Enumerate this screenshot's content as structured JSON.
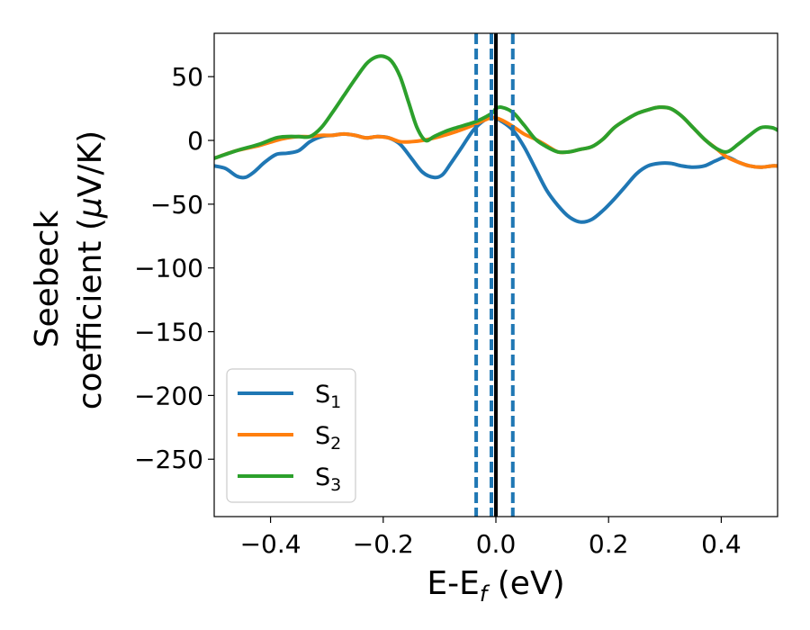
{
  "chart_data": {
    "type": "line",
    "xlabel": {
      "main": "E-E",
      "sub": "f",
      "tail": " (eV)"
    },
    "ylabel": {
      "line1": "Seebeck",
      "line2_pre": "coefficient  (",
      "line2_mu": "μ",
      "line2_post": "V/K)"
    },
    "xlim": [
      -0.5,
      0.5
    ],
    "ylim": [
      -295,
      84
    ],
    "x_ticks": [
      -0.4,
      -0.2,
      0.0,
      0.2,
      0.4
    ],
    "x_tick_labels": [
      "−0.4",
      "−0.2",
      "0.0",
      "0.2",
      "0.4"
    ],
    "y_ticks": [
      50,
      0,
      -50,
      -100,
      -150,
      -200,
      -250
    ],
    "y_tick_labels": [
      "50",
      "0",
      "−50",
      "−100",
      "−150",
      "−200",
      "−250"
    ],
    "grid": false,
    "legend_position": "lower-left",
    "vlines": [
      {
        "x": -0.035,
        "style": "dashed",
        "color": "#1f77b4"
      },
      {
        "x": -0.008,
        "style": "dashed",
        "color": "#1f77b4"
      },
      {
        "x": 0.0,
        "style": "solid",
        "color": "#000000"
      },
      {
        "x": 0.03,
        "style": "dashed",
        "color": "#1f77b4"
      }
    ],
    "series": [
      {
        "name": "S",
        "sub": "1",
        "color": "#1f77b4",
        "points": [
          [
            -0.5,
            -20
          ],
          [
            -0.48,
            -22
          ],
          [
            -0.46,
            -28
          ],
          [
            -0.445,
            -29
          ],
          [
            -0.43,
            -25
          ],
          [
            -0.41,
            -17
          ],
          [
            -0.39,
            -11
          ],
          [
            -0.37,
            -10
          ],
          [
            -0.35,
            -8
          ],
          [
            -0.33,
            -1
          ],
          [
            -0.31,
            3
          ],
          [
            -0.29,
            4
          ],
          [
            -0.27,
            5
          ],
          [
            -0.25,
            4
          ],
          [
            -0.23,
            2
          ],
          [
            -0.21,
            3
          ],
          [
            -0.19,
            2
          ],
          [
            -0.17,
            -3
          ],
          [
            -0.15,
            -14
          ],
          [
            -0.13,
            -25
          ],
          [
            -0.11,
            -29
          ],
          [
            -0.095,
            -27
          ],
          [
            -0.08,
            -18
          ],
          [
            -0.06,
            -5
          ],
          [
            -0.04,
            8
          ],
          [
            -0.02,
            16
          ],
          [
            -0.005,
            18
          ],
          [
            0.01,
            15
          ],
          [
            0.03,
            8
          ],
          [
            0.05,
            -5
          ],
          [
            0.07,
            -22
          ],
          [
            0.09,
            -39
          ],
          [
            0.11,
            -51
          ],
          [
            0.13,
            -60
          ],
          [
            0.15,
            -64
          ],
          [
            0.17,
            -62
          ],
          [
            0.19,
            -55
          ],
          [
            0.21,
            -46
          ],
          [
            0.23,
            -36
          ],
          [
            0.25,
            -26
          ],
          [
            0.27,
            -20
          ],
          [
            0.29,
            -18
          ],
          [
            0.31,
            -18
          ],
          [
            0.33,
            -20
          ],
          [
            0.35,
            -21
          ],
          [
            0.37,
            -20
          ],
          [
            0.39,
            -16
          ],
          [
            0.41,
            -13
          ],
          [
            0.43,
            -17
          ],
          [
            0.45,
            -20
          ],
          [
            0.47,
            -21
          ],
          [
            0.49,
            -20
          ],
          [
            0.5,
            -20
          ]
        ]
      },
      {
        "name": "S",
        "sub": "2",
        "color": "#ff7f0e",
        "points": [
          [
            -0.5,
            -14
          ],
          [
            -0.46,
            -8
          ],
          [
            -0.42,
            -4
          ],
          [
            -0.39,
            0
          ],
          [
            -0.37,
            2
          ],
          [
            -0.35,
            3
          ],
          [
            -0.33,
            3
          ],
          [
            -0.31,
            4
          ],
          [
            -0.29,
            4
          ],
          [
            -0.27,
            5
          ],
          [
            -0.25,
            4
          ],
          [
            -0.23,
            2
          ],
          [
            -0.21,
            3
          ],
          [
            -0.19,
            2
          ],
          [
            -0.17,
            -1
          ],
          [
            -0.15,
            -1
          ],
          [
            -0.13,
            0
          ],
          [
            -0.1,
            3
          ],
          [
            -0.07,
            7
          ],
          [
            -0.04,
            12
          ],
          [
            -0.02,
            16
          ],
          [
            -0.005,
            18
          ],
          [
            0.01,
            16
          ],
          [
            0.03,
            11
          ],
          [
            0.05,
            5
          ],
          [
            0.07,
            1
          ],
          [
            0.09,
            -4
          ],
          [
            0.11,
            -9
          ],
          [
            0.13,
            -9
          ],
          [
            0.15,
            -7
          ],
          [
            0.17,
            -5
          ],
          [
            0.19,
            1
          ],
          [
            0.21,
            10
          ],
          [
            0.23,
            16
          ],
          [
            0.25,
            21
          ],
          [
            0.27,
            24
          ],
          [
            0.29,
            26
          ],
          [
            0.31,
            25
          ],
          [
            0.33,
            19
          ],
          [
            0.35,
            10
          ],
          [
            0.37,
            1
          ],
          [
            0.39,
            -6
          ],
          [
            0.41,
            -13
          ],
          [
            0.43,
            -17
          ],
          [
            0.45,
            -20
          ],
          [
            0.47,
            -21
          ],
          [
            0.49,
            -20
          ],
          [
            0.5,
            -20
          ]
        ]
      },
      {
        "name": "S",
        "sub": "3",
        "color": "#2ca02c",
        "points": [
          [
            -0.5,
            -14
          ],
          [
            -0.46,
            -8
          ],
          [
            -0.42,
            -3
          ],
          [
            -0.39,
            2
          ],
          [
            -0.37,
            3
          ],
          [
            -0.35,
            3
          ],
          [
            -0.33,
            3
          ],
          [
            -0.31,
            10
          ],
          [
            -0.29,
            22
          ],
          [
            -0.27,
            35
          ],
          [
            -0.25,
            48
          ],
          [
            -0.23,
            60
          ],
          [
            -0.215,
            65
          ],
          [
            -0.2,
            66
          ],
          [
            -0.185,
            62
          ],
          [
            -0.17,
            50
          ],
          [
            -0.155,
            30
          ],
          [
            -0.14,
            10
          ],
          [
            -0.125,
            0
          ],
          [
            -0.11,
            3
          ],
          [
            -0.09,
            7
          ],
          [
            -0.07,
            10
          ],
          [
            -0.04,
            14
          ],
          [
            -0.02,
            18
          ],
          [
            -0.005,
            22
          ],
          [
            0.0,
            25
          ],
          [
            0.01,
            26
          ],
          [
            0.03,
            22
          ],
          [
            0.05,
            12
          ],
          [
            0.07,
            1
          ],
          [
            0.09,
            -5
          ],
          [
            0.11,
            -9
          ],
          [
            0.13,
            -9
          ],
          [
            0.15,
            -7
          ],
          [
            0.17,
            -5
          ],
          [
            0.19,
            1
          ],
          [
            0.21,
            10
          ],
          [
            0.23,
            16
          ],
          [
            0.25,
            21
          ],
          [
            0.27,
            24
          ],
          [
            0.29,
            26
          ],
          [
            0.31,
            25
          ],
          [
            0.33,
            19
          ],
          [
            0.35,
            10
          ],
          [
            0.37,
            1
          ],
          [
            0.39,
            -6
          ],
          [
            0.41,
            -9
          ],
          [
            0.43,
            -3
          ],
          [
            0.45,
            4
          ],
          [
            0.47,
            10
          ],
          [
            0.49,
            10
          ],
          [
            0.5,
            8
          ]
        ]
      }
    ]
  }
}
